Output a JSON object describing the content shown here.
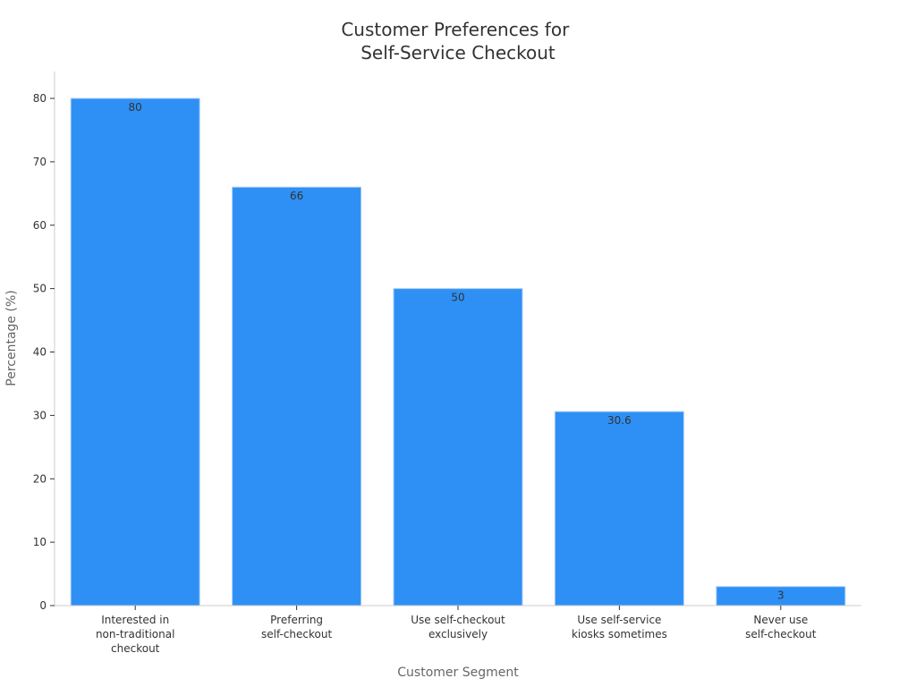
{
  "chart_data": {
    "type": "bar",
    "title": [
      "Customer Preferences for",
      "Self-Service Checkout"
    ],
    "xlabel": "Customer Segment",
    "ylabel": "Percentage (%)",
    "categories": [
      [
        "Interested in",
        "non-traditional",
        "checkout"
      ],
      [
        "Preferring",
        "self-checkout"
      ],
      [
        "Use self-checkout",
        "exclusively"
      ],
      [
        "Use self-service",
        "kiosks sometimes"
      ],
      [
        "Never use",
        "self-checkout"
      ]
    ],
    "values": [
      80,
      66,
      50,
      30.6,
      3
    ],
    "value_labels": [
      "80",
      "66",
      "50",
      "30.6",
      "3"
    ],
    "ylim": [
      0,
      84
    ],
    "yticks": [
      0,
      10,
      20,
      30,
      40,
      50,
      60,
      70,
      80
    ],
    "bar_color": "#2e90f5",
    "grid": false,
    "legend": "none"
  }
}
